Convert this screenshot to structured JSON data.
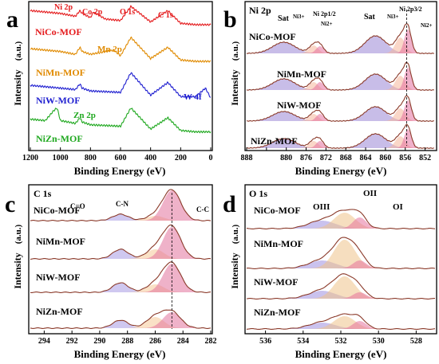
{
  "chart_data": [
    {
      "panel": "a",
      "type": "line",
      "xlabel": "Binding Energy (eV)",
      "ylabel": "Intensity",
      "yunit": "(a.u.)",
      "xlim": [
        1200,
        0
      ],
      "xreversed": true,
      "xticks": [
        1200,
        1000,
        800,
        600,
        400,
        200,
        0
      ],
      "yticks": [],
      "peak_labels": [
        {
          "text": "Ni 2p",
          "x": 860,
          "color": "#e41a1c"
        },
        {
          "text": "Co 2p",
          "x": 780,
          "color": "#e41a1c"
        },
        {
          "text": "O 1s",
          "x": 531,
          "color": "#e41a1c"
        },
        {
          "text": "C 1s",
          "x": 285,
          "color": "#e41a1c"
        }
      ],
      "element_labels": [
        {
          "text": "Mn 2p",
          "x": 645,
          "color": "#e08a00"
        },
        {
          "text": "W 4f",
          "x": 35,
          "color": "#1f1fd0"
        },
        {
          "text": "Zn 2p",
          "x": 1030,
          "color": "#1fa81f"
        }
      ],
      "series": [
        {
          "name": "NiCo-MOF",
          "color": "#e41a1c",
          "baseline": 0.88,
          "x": [
            1200,
            1100,
            1000,
            900,
            870,
            855,
            800,
            780,
            700,
            600,
            531,
            400,
            285,
            200,
            100,
            0
          ],
          "y": [
            0.97,
            0.96,
            0.95,
            0.93,
            0.97,
            0.95,
            0.92,
            0.96,
            0.91,
            0.9,
            1.0,
            0.89,
            0.97,
            0.88,
            0.87,
            0.87
          ]
        },
        {
          "name": "NiMn-MOF",
          "color": "#e08a00",
          "baseline": 0.62,
          "x": [
            1200,
            1100,
            1000,
            900,
            870,
            855,
            800,
            645,
            600,
            531,
            400,
            285,
            200,
            100,
            0
          ],
          "y": [
            0.7,
            0.69,
            0.68,
            0.66,
            0.71,
            0.68,
            0.66,
            0.69,
            0.65,
            0.78,
            0.63,
            0.71,
            0.62,
            0.61,
            0.61
          ]
        },
        {
          "name": "NiW-MOF",
          "color": "#1f1fd0",
          "baseline": 0.36,
          "x": [
            1200,
            1100,
            1000,
            900,
            870,
            855,
            800,
            600,
            531,
            400,
            285,
            200,
            100,
            35,
            0
          ],
          "y": [
            0.44,
            0.43,
            0.42,
            0.41,
            0.45,
            0.42,
            0.4,
            0.39,
            0.53,
            0.37,
            0.46,
            0.36,
            0.36,
            0.42,
            0.35
          ]
        },
        {
          "name": "NiZn-MOF",
          "color": "#1fa81f",
          "baseline": 0.12,
          "x": [
            1200,
            1100,
            1045,
            1022,
            1000,
            900,
            870,
            855,
            800,
            600,
            531,
            400,
            285,
            200,
            100,
            0
          ],
          "y": [
            0.2,
            0.19,
            0.26,
            0.28,
            0.19,
            0.17,
            0.21,
            0.18,
            0.16,
            0.15,
            0.28,
            0.13,
            0.21,
            0.12,
            0.11,
            0.11
          ]
        }
      ]
    },
    {
      "panel": "b",
      "type": "area",
      "title": "Ni 2p",
      "xlabel": "Binding Energy (eV)",
      "ylabel": "Intensity",
      "yunit": "(a.u.)",
      "xlim": [
        888,
        850
      ],
      "xreversed": true,
      "xticks": [
        888,
        884,
        880,
        876,
        872,
        868,
        864,
        860,
        856,
        852
      ],
      "xtick_labels": [
        "888",
        "",
        "880",
        "876",
        "872",
        "868",
        "864",
        "860",
        "856",
        "852"
      ],
      "dashed_x": 855.7,
      "annotations": [
        "Sat",
        "Ni3+",
        "Ni 2p1/2",
        "Ni2+",
        "Sat",
        "Ni3+",
        "Ni 2p3/2",
        "Ni2+"
      ],
      "series": [
        {
          "name": "NiCo-MOF"
        },
        {
          "name": "NiMn-MOF"
        },
        {
          "name": "NiW-MOF"
        },
        {
          "name": "NiZn-MOF"
        }
      ]
    },
    {
      "panel": "c",
      "type": "area",
      "title": "C 1s",
      "xlabel": "Binding Energy (eV)",
      "ylabel": "Intensity",
      "yunit": "(a.u.)",
      "xlim": [
        295,
        282
      ],
      "xreversed": true,
      "xticks": [
        294,
        292,
        290,
        288,
        286,
        284,
        282
      ],
      "dashed_x": 284.8,
      "annotations": [
        "C=O",
        "C-N",
        "C-C"
      ],
      "series": [
        {
          "name": "NiCo-MOF"
        },
        {
          "name": "NiMn-MOF"
        },
        {
          "name": "NiW-MOF"
        },
        {
          "name": "NiZn-MOF"
        }
      ]
    },
    {
      "panel": "d",
      "type": "area",
      "title": "O 1s",
      "xlabel": "Binding Energy (eV)",
      "ylabel": "Intensity",
      "yunit": "(a.u.)",
      "xlim": [
        537,
        527
      ],
      "xreversed": true,
      "xticks": [
        536,
        534,
        532,
        530,
        528
      ],
      "annotations": [
        "OIII",
        "OII",
        "OI"
      ],
      "series": [
        {
          "name": "NiCo-MOF"
        },
        {
          "name": "NiMn-MOF"
        },
        {
          "name": "NiW-MOF"
        },
        {
          "name": "NiZn-MOF"
        }
      ]
    }
  ],
  "fit_colors": {
    "satellite": "#9a86d6",
    "ni3_sat": "#b9a3e6",
    "ni3": "#f5b69b",
    "ni2": "#e46f9f",
    "c_o": "#a79ae3",
    "c_n": "#f5c897",
    "c_c": "#e2729d",
    "o3": "#9f90e0",
    "o2": "#efc38a",
    "o1": "#e6739d",
    "envelope": "#8b3a2a"
  }
}
